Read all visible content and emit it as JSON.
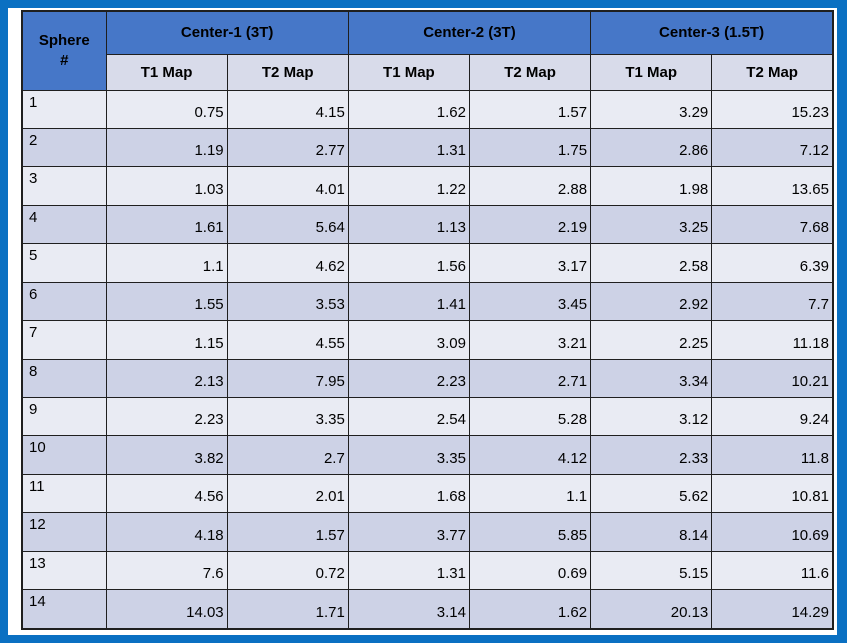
{
  "table": {
    "corner": {
      "line1": "Sphere",
      "line2": "#"
    },
    "groups": [
      {
        "label": "Center-1 (3T)",
        "sub": [
          "T1 Map",
          "T2 Map"
        ]
      },
      {
        "label": "Center-2 (3T)",
        "sub": [
          "T1 Map",
          "T2 Map"
        ]
      },
      {
        "label": "Center-3 (1.5T)",
        "sub": [
          "T1 Map",
          "T2 Map"
        ]
      }
    ],
    "rows": [
      {
        "sphere": "1",
        "values": [
          "0.75",
          "4.15",
          "1.62",
          "1.57",
          "3.29",
          "15.23"
        ]
      },
      {
        "sphere": "2",
        "values": [
          "1.19",
          "2.77",
          "1.31",
          "1.75",
          "2.86",
          "7.12"
        ]
      },
      {
        "sphere": "3",
        "values": [
          "1.03",
          "4.01",
          "1.22",
          "2.88",
          "1.98",
          "13.65"
        ]
      },
      {
        "sphere": "4",
        "values": [
          "1.61",
          "5.64",
          "1.13",
          "2.19",
          "3.25",
          "7.68"
        ]
      },
      {
        "sphere": "5",
        "values": [
          "1.1",
          "4.62",
          "1.56",
          "3.17",
          "2.58",
          "6.39"
        ]
      },
      {
        "sphere": "6",
        "values": [
          "1.55",
          "3.53",
          "1.41",
          "3.45",
          "2.92",
          "7.7"
        ]
      },
      {
        "sphere": "7",
        "values": [
          "1.15",
          "4.55",
          "3.09",
          "3.21",
          "2.25",
          "11.18"
        ]
      },
      {
        "sphere": "8",
        "values": [
          "2.13",
          "7.95",
          "2.23",
          "2.71",
          "3.34",
          "10.21"
        ]
      },
      {
        "sphere": "9",
        "values": [
          "2.23",
          "3.35",
          "2.54",
          "5.28",
          "3.12",
          "9.24"
        ]
      },
      {
        "sphere": "10",
        "values": [
          "3.82",
          "2.7",
          "3.35",
          "4.12",
          "2.33",
          "11.8"
        ]
      },
      {
        "sphere": "11",
        "values": [
          "4.56",
          "2.01",
          "1.68",
          "1.1",
          "5.62",
          "10.81"
        ]
      },
      {
        "sphere": "12",
        "values": [
          "4.18",
          "1.57",
          "3.77",
          "5.85",
          "8.14",
          "10.69"
        ]
      },
      {
        "sphere": "13",
        "values": [
          "7.6",
          "0.72",
          "1.31",
          "0.69",
          "5.15",
          "11.6"
        ]
      },
      {
        "sphere": "14",
        "values": [
          "14.03",
          "1.71",
          "3.14",
          "1.62",
          "20.13",
          "14.29"
        ]
      }
    ]
  },
  "colors": {
    "frame_blue": "#0A70C2",
    "header_blue": "#4677C8",
    "subheader_lavender": "#D8DBEA",
    "row_light": "#E9EBF3",
    "row_dark": "#CDD2E6",
    "grid_border": "#1F1F1F",
    "text": "#000000"
  }
}
